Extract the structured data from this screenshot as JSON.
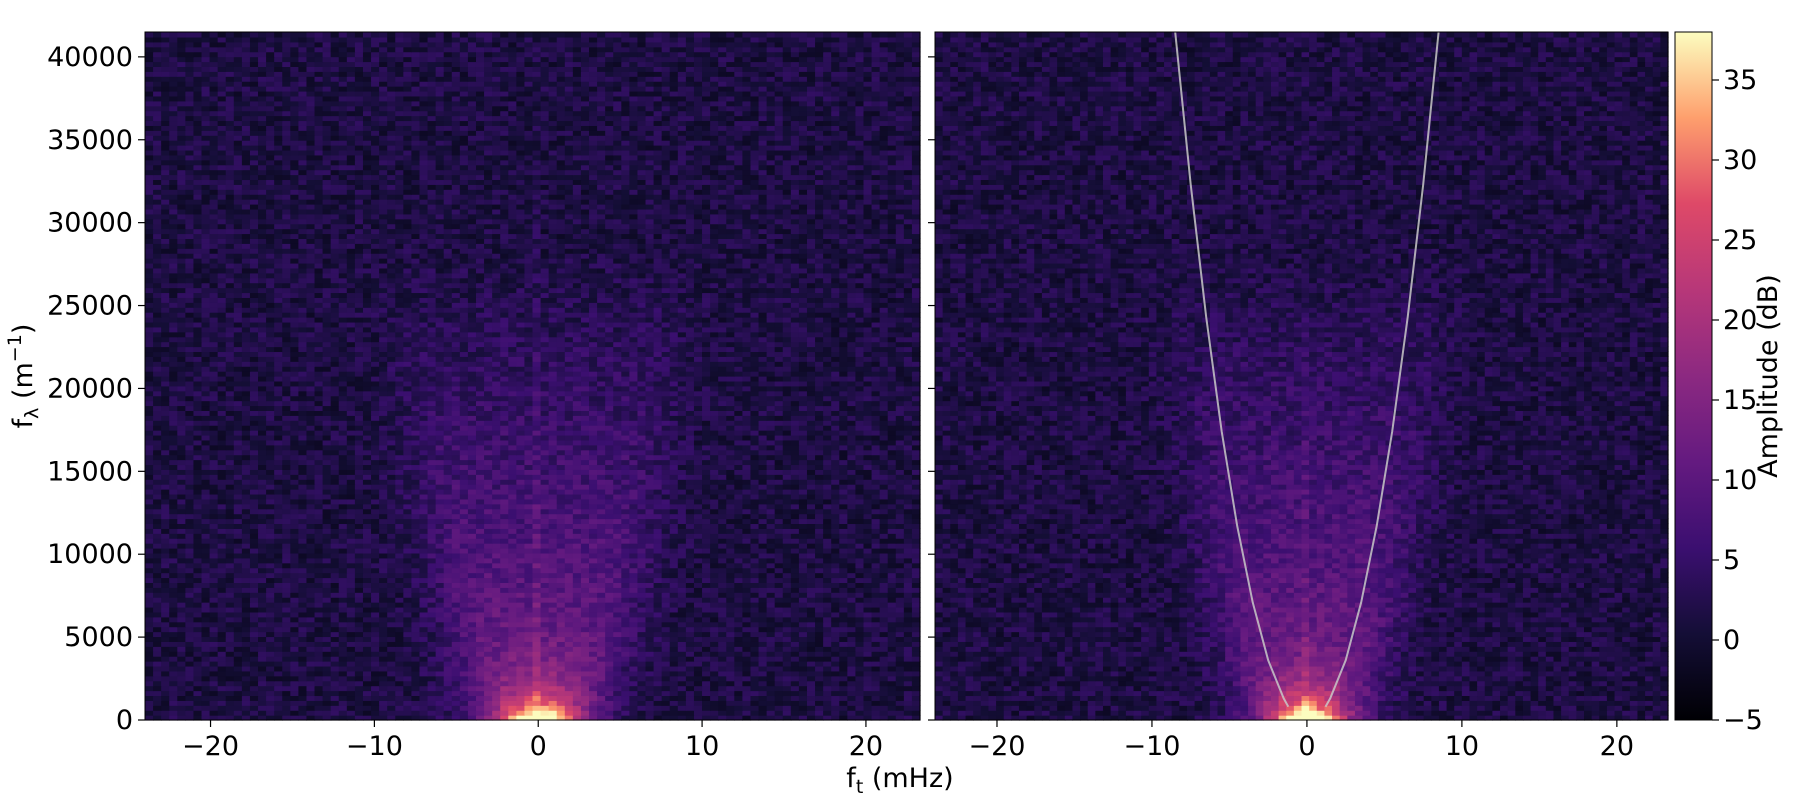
{
  "chart_data": {
    "type": "heatmap",
    "xlabel": "f",
    "xlabel_sub": "t",
    "xlabel_unit": " (mHz)",
    "ylabel": "f",
    "ylabel_sub": "λ",
    "ylabel_unit": " (m",
    "ylabel_exp": "−1",
    "ylabel_close": ")",
    "xlim": [
      -24,
      23.3
    ],
    "ylim": [
      0,
      41500
    ],
    "x_ticks": [
      -20,
      -10,
      0,
      10,
      20
    ],
    "x_tick_labels": [
      "−20",
      "−10",
      "0",
      "10",
      "20"
    ],
    "y_ticks": [
      0,
      5000,
      10000,
      15000,
      20000,
      25000,
      30000,
      35000,
      40000
    ],
    "y_tick_labels": [
      "0",
      "5000",
      "10000",
      "15000",
      "20000",
      "25000",
      "30000",
      "35000",
      "40000"
    ],
    "colormap": "magma",
    "colorbar": {
      "label": "Amplitude (dB)",
      "range": [
        -5,
        38
      ],
      "ticks": [
        -5,
        0,
        5,
        10,
        15,
        20,
        25,
        30,
        35
      ],
      "tick_labels": [
        "−5",
        "0",
        "5",
        "10",
        "15",
        "20",
        "25",
        "30",
        "35"
      ]
    },
    "panels": [
      {
        "name": "left",
        "field": "spectrum",
        "peak_db": 37,
        "dispersion_curve": null
      },
      {
        "name": "right",
        "field": "spectrum",
        "peak_db": 37,
        "dispersion_curve": {
          "color": "#c8c8c8",
          "points": [
            [
              -8.5,
              41500
            ],
            [
              -7.5,
              32300
            ],
            [
              -6.5,
              24300
            ],
            [
              -5.5,
              17400
            ],
            [
              -4.5,
              11700
            ],
            [
              -3.5,
              7100
            ],
            [
              -2.5,
              3600
            ],
            [
              -1.5,
              1300
            ],
            [
              -1.2,
              800
            ],
            [
              1.2,
              800
            ],
            [
              1.5,
              1300
            ],
            [
              2.5,
              3600
            ],
            [
              3.5,
              7100
            ],
            [
              4.5,
              11700
            ],
            [
              5.5,
              17400
            ],
            [
              6.5,
              24300
            ],
            [
              7.5,
              32300
            ],
            [
              8.5,
              41500
            ]
          ]
        }
      }
    ]
  }
}
